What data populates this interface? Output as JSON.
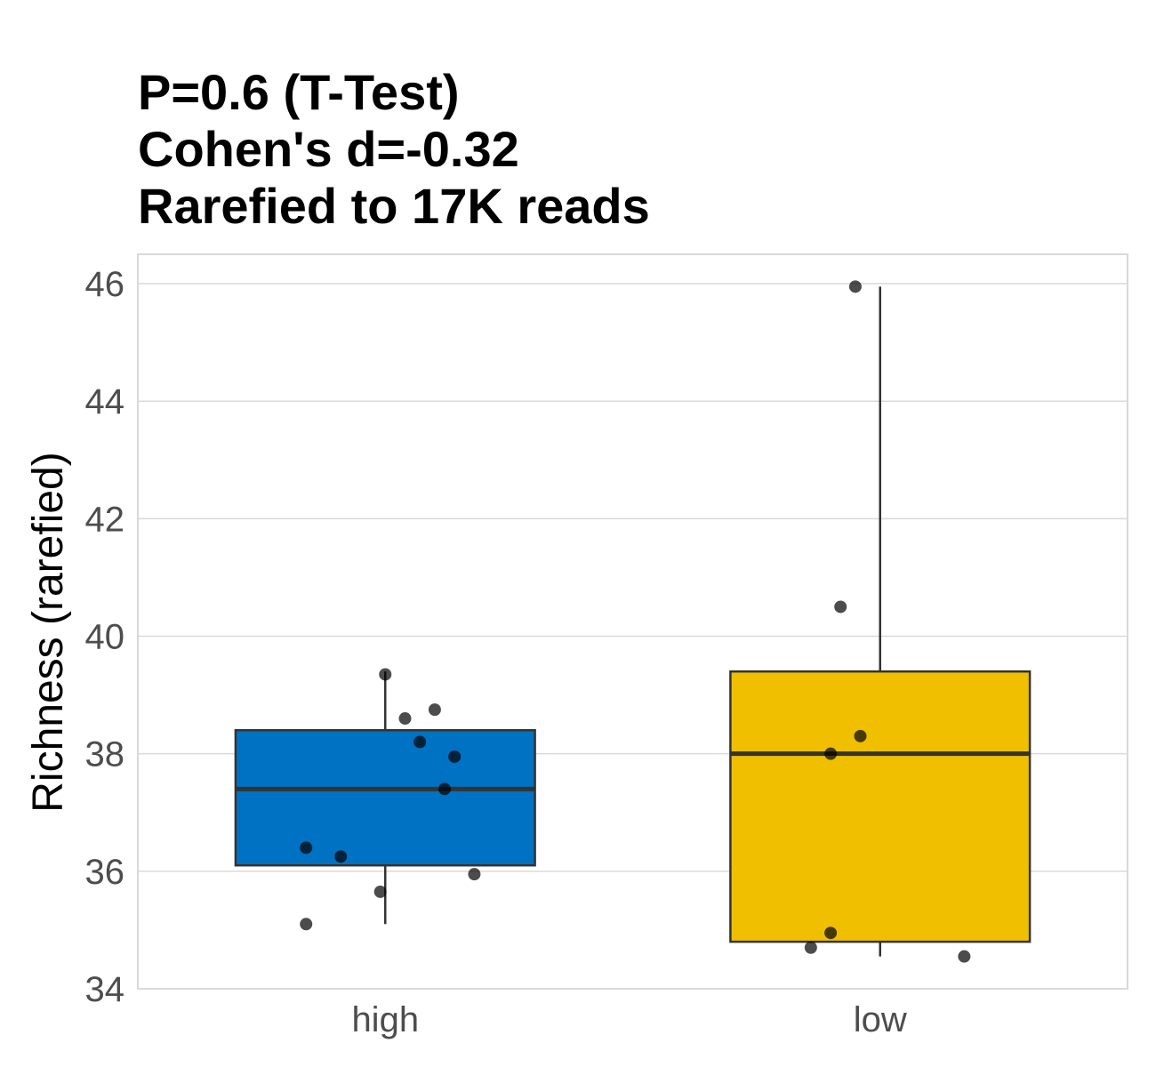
{
  "chart_data": {
    "type": "box",
    "title_lines": [
      "P=0.6 (T-Test)",
      "Cohen's d=-0.32",
      "Rarefied to 17K reads"
    ],
    "xlabel": "",
    "ylabel": "Richness (rarefied)",
    "ylim": [
      34,
      46.5
    ],
    "yticks": [
      34,
      36,
      38,
      40,
      42,
      44,
      46
    ],
    "categories": [
      "high",
      "low"
    ],
    "grid": true,
    "boxes": [
      {
        "category": "high",
        "color": "#0072c3",
        "whisker_low": 35.1,
        "q1": 36.1,
        "median": 37.4,
        "q3": 38.4,
        "whisker_high": 39.4,
        "points": [
          {
            "x_jitter": 0.0,
            "y": 39.35
          },
          {
            "x_jitter": 0.1,
            "y": 38.75
          },
          {
            "x_jitter": 0.04,
            "y": 38.6
          },
          {
            "x_jitter": 0.07,
            "y": 38.2
          },
          {
            "x_jitter": 0.14,
            "y": 37.95
          },
          {
            "x_jitter": 0.12,
            "y": 37.4
          },
          {
            "x_jitter": -0.16,
            "y": 36.4
          },
          {
            "x_jitter": -0.09,
            "y": 36.25
          },
          {
            "x_jitter": 0.18,
            "y": 35.95
          },
          {
            "x_jitter": -0.01,
            "y": 35.65
          },
          {
            "x_jitter": -0.16,
            "y": 35.1
          }
        ]
      },
      {
        "category": "low",
        "color": "#f0c000",
        "whisker_low": 34.55,
        "q1": 34.8,
        "median": 38.0,
        "q3": 39.4,
        "whisker_high": 45.95,
        "points": [
          {
            "x_jitter": -0.05,
            "y": 45.95
          },
          {
            "x_jitter": -0.08,
            "y": 40.5
          },
          {
            "x_jitter": -0.04,
            "y": 38.3
          },
          {
            "x_jitter": -0.1,
            "y": 38.0
          },
          {
            "x_jitter": -0.1,
            "y": 34.95
          },
          {
            "x_jitter": -0.14,
            "y": 34.7
          },
          {
            "x_jitter": 0.17,
            "y": 34.55
          }
        ]
      }
    ]
  }
}
